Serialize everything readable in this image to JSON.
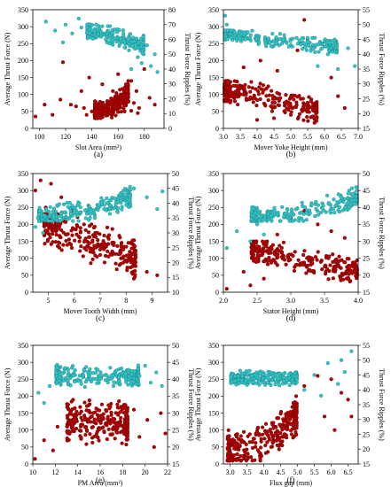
{
  "colors": {
    "force": "#b30000",
    "force_edge": "#6a0000",
    "ripple": "#33c4c4",
    "ripple_edge": "#1a7f86"
  },
  "chart_data": [
    {
      "type": "scatter",
      "panel_label": "(a)",
      "xlabel": "Slot Area (mm²)",
      "ylabel_left": "Average Thrust Force (N)",
      "ylabel_right": "Thrust Force Ripples (%)",
      "xlim": [
        95,
        195
      ],
      "xticks": [
        100,
        120,
        140,
        160,
        180
      ],
      "ylim_left": [
        0,
        350
      ],
      "yticks_left": [
        0,
        50,
        100,
        150,
        200,
        250,
        300,
        350
      ],
      "ylim_right": [
        0,
        80
      ],
      "yticks_right": [
        0,
        10,
        20,
        30,
        40,
        50,
        60,
        70,
        80
      ],
      "series": [
        {
          "name": "",
          "axis": "left",
          "color": "force",
          "points": [
            [
              97,
              35
            ],
            [
              104,
              70
            ],
            [
              110,
              40
            ],
            [
              116,
              85
            ],
            [
              118,
              195
            ],
            [
              124,
              70
            ],
            [
              128,
              65
            ],
            [
              132,
              110
            ],
            [
              134,
              60
            ],
            [
              138,
              150
            ],
            [
              140,
              50
            ],
            [
              142,
              40
            ],
            [
              144,
              60
            ],
            [
              146,
              50
            ],
            [
              148,
              130
            ],
            [
              150,
              45
            ],
            [
              152,
              80
            ],
            [
              154,
              55
            ],
            [
              156,
              110
            ],
            [
              158,
              70
            ],
            [
              160,
              160
            ],
            [
              162,
              90
            ],
            [
              164,
              60
            ],
            [
              166,
              130
            ],
            [
              168,
              80
            ],
            [
              170,
              140
            ],
            [
              172,
              75
            ],
            [
              174,
              110
            ],
            [
              176,
              60
            ],
            [
              180,
              175
            ],
            [
              184,
              90
            ],
            [
              188,
              70
            ],
            [
              136,
              40
            ],
            [
              145,
              35
            ],
            [
              155,
              45
            ],
            [
              165,
              50
            ],
            [
              175,
              45
            ],
            [
              150,
              62
            ],
            [
              160,
              48
            ],
            [
              170,
              52
            ]
          ],
          "cloud": {
            "seed": 11,
            "n": 260,
            "x": [
              142,
              168
            ],
            "y": [
              30,
              140
            ],
            "y_rises_with_x": true
          }
        },
        {
          "name": "",
          "axis": "right",
          "color": "ripple",
          "points": [
            [
              105,
              72
            ],
            [
              112,
              66
            ],
            [
              118,
              58
            ],
            [
              120,
              70
            ],
            [
              125,
              64
            ],
            [
              130,
              74
            ],
            [
              132,
              68
            ],
            [
              185,
              42
            ],
            [
              188,
              50
            ],
            [
              190,
              38
            ],
            [
              178,
              44
            ],
            [
              182,
              56
            ],
            [
              170,
              40
            ],
            [
              175,
              48
            ]
          ],
          "cloud": {
            "seed": 23,
            "n": 240,
            "x": [
              136,
              180
            ],
            "y": [
              50,
              70
            ],
            "y_falls_with_x": true
          }
        }
      ]
    },
    {
      "type": "scatter",
      "panel_label": "(b)",
      "xlabel": "Mover Yoke Height (mm)",
      "ylabel_left": "Average Thrust Force (N)",
      "ylabel_right": "Thrust Force Ripples (%)",
      "xlim": [
        3.0,
        7.0
      ],
      "xticks": [
        3.0,
        3.5,
        4.0,
        4.5,
        5.0,
        5.5,
        6.0,
        6.5,
        7.0
      ],
      "ylim_left": [
        0,
        350
      ],
      "yticks_left": [
        0,
        50,
        100,
        150,
        200,
        250,
        300,
        350
      ],
      "ylim_right": [
        15,
        55
      ],
      "yticks_right": [
        15,
        20,
        25,
        30,
        35,
        40,
        45,
        50,
        55
      ],
      "series": [
        {
          "name": "",
          "axis": "left",
          "color": "force",
          "points": [
            [
              3.6,
              180
            ],
            [
              4.1,
              200
            ],
            [
              4.6,
              170
            ],
            [
              5.2,
              230
            ],
            [
              5.4,
              320
            ],
            [
              5.9,
              250
            ],
            [
              6.2,
              150
            ],
            [
              6.4,
              95
            ],
            [
              6.6,
              60
            ],
            [
              5.6,
              80
            ],
            [
              5.0,
              40
            ],
            [
              4.5,
              30
            ],
            [
              4.0,
              25
            ]
          ],
          "cloud": {
            "seed": 31,
            "n": 260,
            "x": [
              3.0,
              5.8
            ],
            "y": [
              10,
              140
            ],
            "y_falls_with_x": true
          }
        },
        {
          "name": "",
          "axis": "right",
          "color": "ripple",
          "points": [
            [
              3.05,
              53
            ],
            [
              3.1,
              50
            ],
            [
              5.8,
              36
            ],
            [
              6.1,
              40
            ],
            [
              6.4,
              35
            ],
            [
              6.7,
              42
            ],
            [
              6.9,
              36
            ]
          ],
          "cloud": {
            "seed": 37,
            "n": 230,
            "x": [
              3.0,
              6.4
            ],
            "y": [
              40,
              48
            ],
            "y_falls_with_x": true
          }
        }
      ]
    },
    {
      "type": "scatter",
      "panel_label": "(c)",
      "xlabel": "Mover Tooth Width (mm)",
      "ylabel_left": "Average Thrust Force (N)",
      "ylabel_right": "Thrust Force Ripples (%)",
      "xlim": [
        4.4,
        9.6
      ],
      "xticks": [
        5,
        6,
        7,
        8,
        9
      ],
      "ylim_left": [
        0,
        350
      ],
      "yticks_left": [
        0,
        50,
        100,
        150,
        200,
        250,
        300,
        350
      ],
      "ylim_right": [
        10,
        50
      ],
      "yticks_right": [
        10,
        15,
        20,
        25,
        30,
        35,
        40,
        45,
        50
      ],
      "series": [
        {
          "name": "",
          "axis": "left",
          "color": "force",
          "points": [
            [
              4.5,
              300
            ],
            [
              4.7,
              330
            ],
            [
              4.9,
              250
            ],
            [
              5.1,
              320
            ],
            [
              5.3,
              200
            ],
            [
              5.5,
              280
            ],
            [
              5.7,
              170
            ],
            [
              5.9,
              240
            ],
            [
              6.2,
              150
            ],
            [
              6.6,
              130
            ],
            [
              7.0,
              110
            ],
            [
              8.3,
              40
            ],
            [
              8.8,
              60
            ],
            [
              9.2,
              50
            ]
          ],
          "cloud": {
            "seed": 41,
            "n": 280,
            "x": [
              4.8,
              8.4
            ],
            "y": [
              40,
              230
            ],
            "y_falls_with_x": true
          }
        },
        {
          "name": "",
          "axis": "right",
          "color": "ripple",
          "points": [
            [
              4.5,
              32
            ],
            [
              4.6,
              35
            ],
            [
              4.8,
              30
            ],
            [
              8.3,
              45
            ],
            [
              8.8,
              42
            ],
            [
              9.2,
              38
            ],
            [
              9.4,
              44
            ]
          ],
          "cloud": {
            "seed": 47,
            "n": 240,
            "x": [
              4.6,
              8.2
            ],
            "y": [
              34,
              46
            ],
            "y_rises_with_x": true
          }
        }
      ]
    },
    {
      "type": "scatter",
      "panel_label": "(d)",
      "xlabel": "Stator Height (mm)",
      "ylabel_left": "Average Thrust Force (N)",
      "ylabel_right": "Thrust Force Ripples (%)",
      "xlim": [
        2.0,
        4.0
      ],
      "xticks": [
        2.0,
        2.5,
        3.0,
        3.5,
        4.0
      ],
      "ylim_left": [
        0,
        350
      ],
      "yticks_left": [
        0,
        50,
        100,
        150,
        200,
        250,
        300,
        350
      ],
      "ylim_right": [
        15,
        50
      ],
      "yticks_right": [
        15,
        20,
        25,
        30,
        35,
        40,
        45,
        50
      ],
      "series": [
        {
          "name": "",
          "axis": "left",
          "color": "force",
          "points": [
            [
              2.05,
              10
            ],
            [
              2.3,
              60
            ],
            [
              2.5,
              120
            ],
            [
              2.6,
              40
            ],
            [
              2.8,
              170
            ],
            [
              3.0,
              220
            ],
            [
              3.2,
              240
            ],
            [
              3.4,
              200
            ],
            [
              3.6,
              180
            ],
            [
              3.8,
              160
            ],
            [
              2.4,
              20
            ]
          ],
          "cloud": {
            "seed": 53,
            "n": 260,
            "x": [
              2.4,
              4.0
            ],
            "y": [
              20,
              150
            ],
            "y_falls_with_x": true
          }
        },
        {
          "name": "",
          "axis": "right",
          "color": "ripple",
          "points": [
            [
              2.05,
              28
            ],
            [
              2.2,
              33
            ],
            [
              2.4,
              30
            ],
            [
              2.5,
              35
            ],
            [
              2.6,
              32
            ]
          ],
          "cloud": {
            "seed": 59,
            "n": 230,
            "x": [
              2.4,
              4.0
            ],
            "y": [
              36,
              46
            ],
            "y_rises_with_x": true
          }
        }
      ]
    },
    {
      "type": "scatter",
      "panel_label": "(e)",
      "xlabel": "PM Area (mm²)",
      "ylabel_left": "Average Thrust Force (N)",
      "ylabel_right": "Thrust Force Ripples (%)",
      "xlim": [
        10,
        22
      ],
      "xticks": [
        10,
        12,
        14,
        16,
        18,
        20,
        22
      ],
      "ylim_left": [
        0,
        350
      ],
      "yticks_left": [
        0,
        50,
        100,
        150,
        200,
        250,
        300,
        350
      ],
      "ylim_right": [
        15,
        50
      ],
      "yticks_right": [
        15,
        20,
        25,
        30,
        35,
        40,
        45,
        50
      ],
      "series": [
        {
          "name": "",
          "axis": "left",
          "color": "force",
          "points": [
            [
              10.2,
              15
            ],
            [
              11,
              70
            ],
            [
              11.8,
              40
            ],
            [
              12.2,
              110
            ],
            [
              19,
              160
            ],
            [
              19.5,
              80
            ],
            [
              20.2,
              130
            ],
            [
              20.8,
              50
            ],
            [
              21.4,
              150
            ],
            [
              21.8,
              90
            ]
          ],
          "cloud": {
            "seed": 61,
            "n": 280,
            "x": [
              13,
              18.5
            ],
            "y": [
              20,
              230
            ],
            "y_rises_with_x": false
          }
        },
        {
          "name": "",
          "axis": "right",
          "color": "ripple",
          "points": [
            [
              10.5,
              36
            ],
            [
              11,
              33
            ],
            [
              11.5,
              38
            ],
            [
              19.5,
              41
            ],
            [
              20,
              44
            ],
            [
              20.5,
              39
            ],
            [
              21,
              42
            ],
            [
              21.5,
              38
            ]
          ],
          "cloud": {
            "seed": 67,
            "n": 240,
            "x": [
              12,
              19.5
            ],
            "y": [
              36,
              46
            ],
            "y_rises_with_x": false
          }
        }
      ]
    },
    {
      "type": "scatter",
      "panel_label": "(f)",
      "xlabel": "Flux gap (mm)",
      "ylabel_left": "Average Thrust Force (N)",
      "ylabel_right": "Thrust Force Ripples (%)",
      "xlim": [
        2.8,
        6.8
      ],
      "xticks": [
        3.0,
        3.5,
        4.0,
        4.5,
        5.0,
        5.5,
        6.0,
        6.5
      ],
      "ylim_left": [
        0,
        350
      ],
      "yticks_left": [
        0,
        50,
        100,
        150,
        200,
        250,
        300,
        350
      ],
      "ylim_right": [
        15,
        55
      ],
      "yticks_right": [
        15,
        20,
        25,
        30,
        35,
        40,
        45,
        50,
        55
      ],
      "series": [
        {
          "name": "",
          "axis": "left",
          "color": "force",
          "points": [
            [
              5.2,
              230
            ],
            [
              5.6,
              260
            ],
            [
              6.0,
              250
            ],
            [
              6.3,
              210
            ],
            [
              6.5,
              190
            ],
            [
              5.8,
              140
            ],
            [
              6.1,
              100
            ],
            [
              6.6,
              140
            ]
          ],
          "cloud": {
            "seed": 71,
            "n": 280,
            "x": [
              2.9,
              5.0
            ],
            "y": [
              10,
              200
            ],
            "y_rises_with_x": true
          }
        },
        {
          "name": "",
          "axis": "right",
          "color": "ripple",
          "points": [
            [
              5.2,
              40
            ],
            [
              5.5,
              45
            ],
            [
              5.7,
              38
            ],
            [
              5.9,
              49
            ],
            [
              6.2,
              42
            ],
            [
              6.4,
              46
            ],
            [
              6.6,
              53
            ],
            [
              6.3,
              50
            ]
          ],
          "cloud": {
            "seed": 79,
            "n": 240,
            "x": [
              3.0,
              5.0
            ],
            "y": [
              40,
              48
            ],
            "y_falls_with_x": false
          }
        }
      ]
    }
  ]
}
